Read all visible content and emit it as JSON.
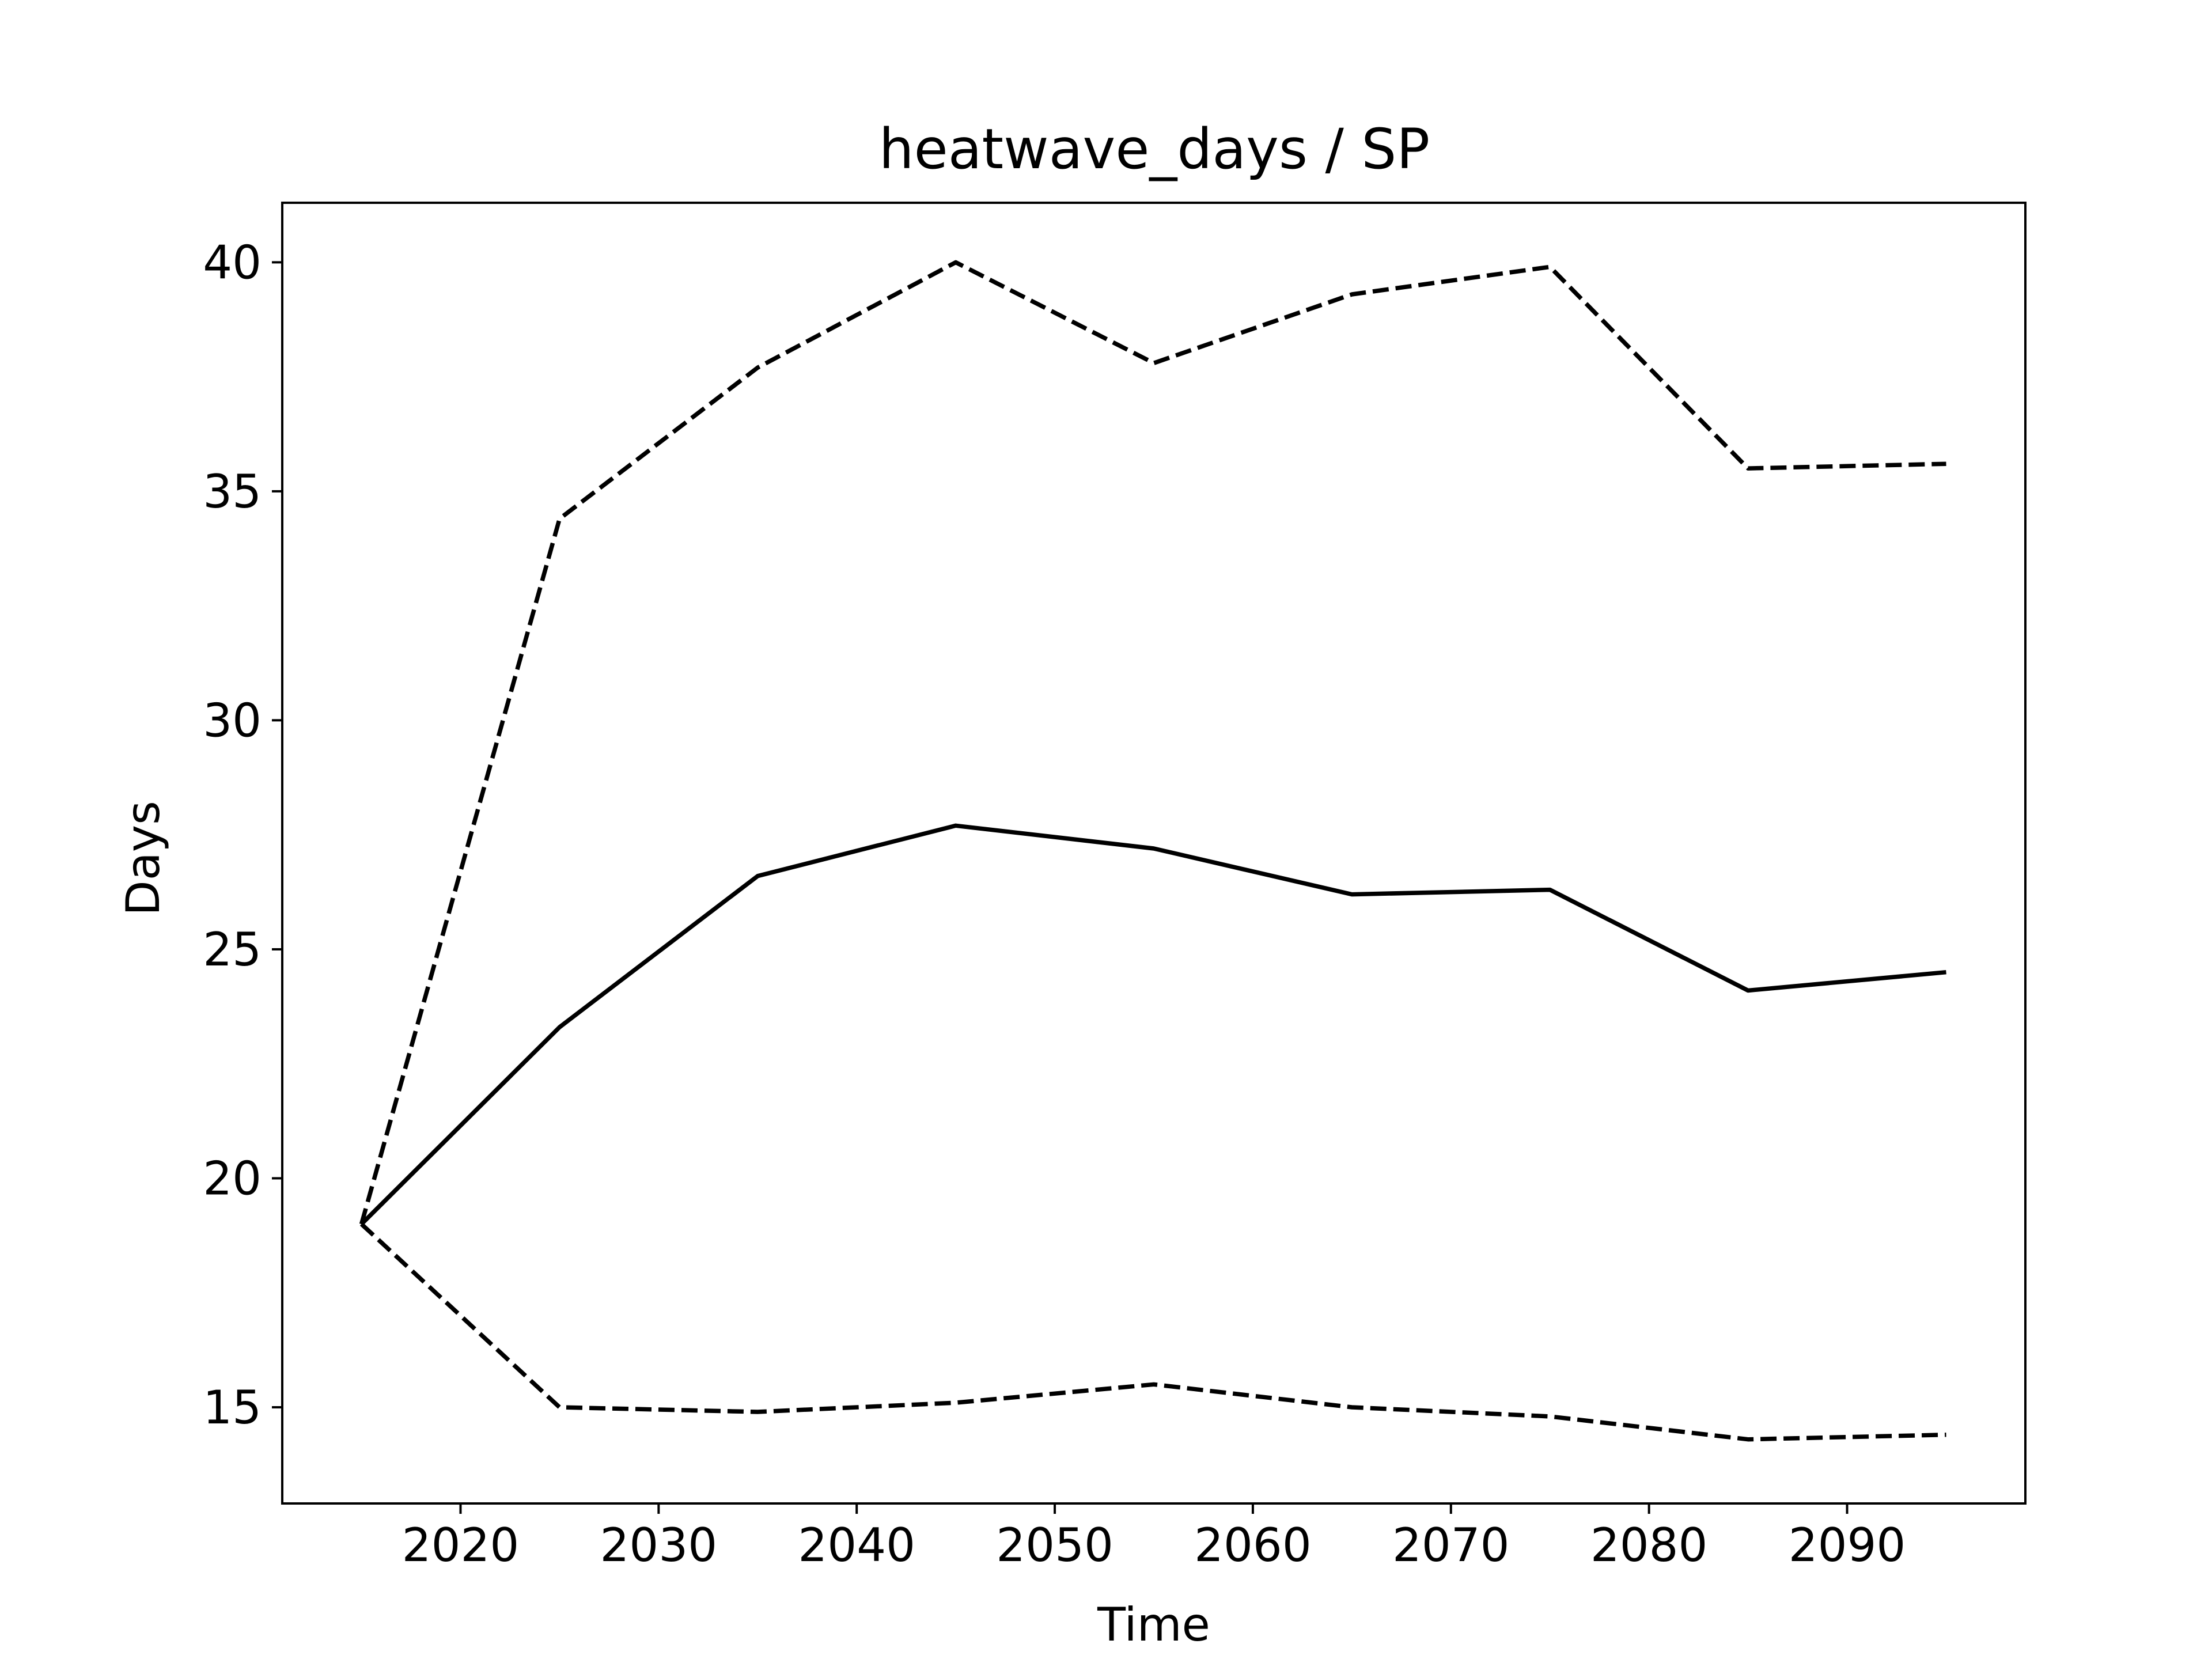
{
  "chart_data": {
    "type": "line",
    "title": "heatwave_days / SP",
    "xlabel": "Time",
    "ylabel": "Days",
    "x": [
      2015,
      2025,
      2035,
      2045,
      2055,
      2065,
      2075,
      2085,
      2095
    ],
    "series": [
      {
        "style": "solid",
        "color": "#000000",
        "values": [
          19.0,
          23.3,
          26.6,
          27.7,
          27.2,
          26.2,
          26.3,
          24.1,
          24.5
        ]
      },
      {
        "style": "dashed",
        "color": "#000000",
        "values": [
          19.0,
          34.4,
          37.7,
          40.0,
          37.8,
          39.3,
          39.9,
          35.5,
          35.6
        ]
      },
      {
        "style": "dashed",
        "color": "#000000",
        "values": [
          19.0,
          15.0,
          14.9,
          15.1,
          15.5,
          15.0,
          14.8,
          14.3,
          14.4
        ]
      }
    ],
    "xlim": [
      2011,
      2099
    ],
    "ylim": [
      12.9,
      41.3
    ],
    "xticks": [
      2020,
      2030,
      2040,
      2050,
      2060,
      2070,
      2080,
      2090
    ],
    "yticks": [
      15,
      20,
      25,
      30,
      35,
      40
    ],
    "grid": false,
    "legend": "none"
  }
}
